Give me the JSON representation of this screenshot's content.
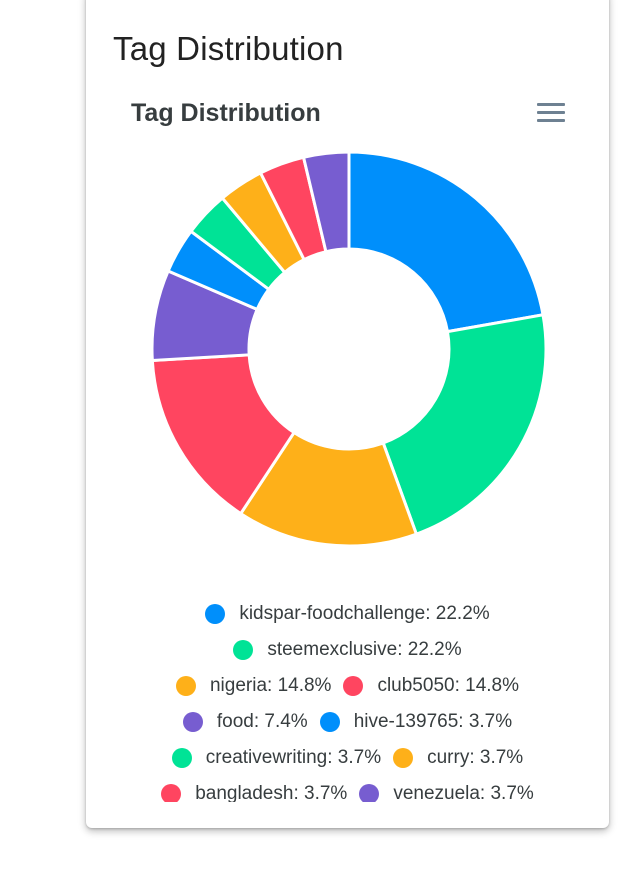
{
  "card": {
    "title": "Tag Distribution"
  },
  "chart_data": {
    "type": "pie",
    "variant": "donut",
    "title": "Tag Distribution",
    "legend_position": "bottom",
    "categories": [
      "kidspar-foodchallenge",
      "steemexclusive",
      "nigeria",
      "club5050",
      "food",
      "hive-139765",
      "creativewriting",
      "curry",
      "bangladesh",
      "venezuela"
    ],
    "values": [
      22.2,
      22.2,
      14.8,
      14.8,
      7.4,
      3.7,
      3.7,
      3.7,
      3.7,
      3.7
    ],
    "colors": [
      "#008ffb",
      "#00e396",
      "#feb019",
      "#ff4560",
      "#775dd0",
      "#008ffb",
      "#00e396",
      "#feb019",
      "#ff4560",
      "#775dd0"
    ],
    "legend_labels": [
      "kidspar-foodchallenge: 22.2%",
      "steemexclusive: 22.2%",
      "nigeria: 14.8%",
      "club5050: 14.8%",
      "food: 7.4%",
      "hive-139765: 3.7%",
      "creativewriting: 3.7%",
      "curry: 3.7%",
      "bangladesh: 3.7%",
      "venezuela: 3.7%"
    ],
    "legend_rows": [
      [
        0
      ],
      [
        1
      ],
      [
        2,
        3
      ],
      [
        4,
        5
      ],
      [
        6,
        7
      ],
      [
        8,
        9
      ]
    ]
  },
  "toolbar": {
    "menu_icon": "hamburger-menu-icon"
  }
}
